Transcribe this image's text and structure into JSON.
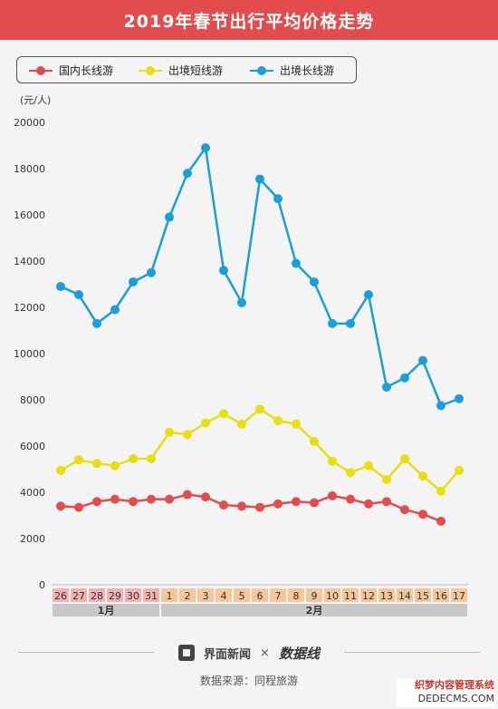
{
  "header": {
    "title": "2019年春节出行平均价格走势"
  },
  "legend": [
    {
      "name": "国内长线游",
      "color": "#e34c4c"
    },
    {
      "name": "出境短线游",
      "color": "#e8df10"
    },
    {
      "name": "出境长线游",
      "color": "#1a9fd8"
    }
  ],
  "unit_label": "(元/人)",
  "chart_data": {
    "type": "line",
    "title": "2019年春节出行平均价格走势",
    "ylabel": "(元/人)",
    "ylim": [
      0,
      20000
    ],
    "yticks": [
      "0",
      "2000",
      "4000",
      "6000",
      "8000",
      "10000",
      "12000",
      "14000",
      "16000",
      "18000",
      "20000"
    ],
    "x": [
      "26",
      "27",
      "28",
      "29",
      "30",
      "31",
      "1",
      "2",
      "3",
      "4",
      "5",
      "6",
      "7",
      "8",
      "9",
      "10",
      "11",
      "12",
      "13",
      "14",
      "15",
      "16",
      "17"
    ],
    "month_groups": [
      {
        "label": "1月",
        "count": 6
      },
      {
        "label": "2月",
        "count": 17
      }
    ],
    "grid": false,
    "legend_position": "top-left",
    "series": [
      {
        "name": "国内长线游",
        "color": "#e34c4c",
        "values": [
          3400,
          3350,
          3600,
          3700,
          3600,
          3700,
          3700,
          3900,
          3800,
          3450,
          3400,
          3350,
          3500,
          3600,
          3550,
          3850,
          3700,
          3500,
          3600,
          3250,
          3050,
          2750,
          null
        ]
      },
      {
        "name": "出境短线游",
        "color": "#e8df10",
        "values": [
          4950,
          5400,
          5250,
          5150,
          5450,
          5450,
          6600,
          6500,
          7000,
          7400,
          6950,
          7600,
          7100,
          6950,
          6200,
          5350,
          4850,
          5150,
          4550,
          5450,
          4700,
          4050,
          4950
        ]
      },
      {
        "name": "出境长线游",
        "color": "#1a9fd8",
        "values": [
          12900,
          12550,
          11300,
          11900,
          13100,
          13500,
          15900,
          17800,
          18900,
          13600,
          12200,
          17550,
          16700,
          13900,
          13100,
          11300,
          11300,
          12550,
          8550,
          8950,
          9700,
          7750,
          8050
        ]
      }
    ]
  },
  "footer": {
    "logo_left": "界面新闻",
    "separator": "×",
    "logo_right": "数据线",
    "source": "数据来源：同程旅游"
  },
  "watermark": {
    "line1": "织梦内容管理系统",
    "line2": "DEDECMS.COM"
  }
}
